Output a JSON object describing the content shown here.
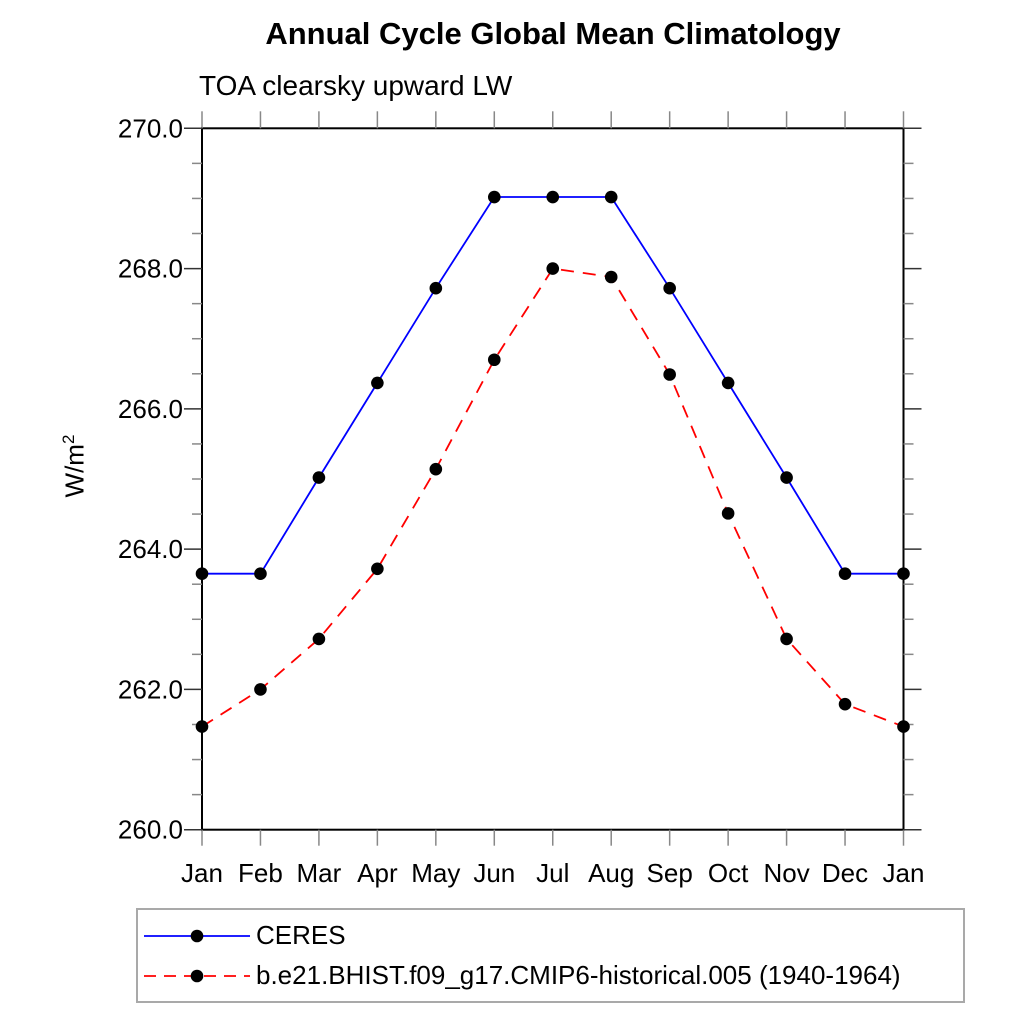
{
  "page": {
    "background_color": "#ffffff"
  },
  "chart_data": {
    "type": "line",
    "title": "Annual Cycle Global Mean Climatology",
    "subtitle": "TOA clearsky upward LW",
    "ylabel": "W/m²",
    "ylabel_base": "W/m",
    "ylabel_exponent": "2",
    "x_categories": [
      "Jan",
      "Feb",
      "Mar",
      "Apr",
      "May",
      "Jun",
      "Jul",
      "Aug",
      "Sep",
      "Oct",
      "Nov",
      "Dec",
      "Jan"
    ],
    "ylim": [
      260.0,
      270.0
    ],
    "ytick_labels": [
      "270.0",
      "268.0",
      "266.0",
      "264.0",
      "262.0",
      "260.0"
    ],
    "ytick_major_interval": 2.0,
    "ytick_minor_interval": 0.5,
    "grid": false,
    "legend_position": "boxed-below-plot",
    "axis_color": "#000000",
    "tick_color_major": "#333333",
    "tick_color_minor": "#888888",
    "series": [
      {
        "name": "CERES",
        "color": "#0000ff",
        "line_style": "solid",
        "marker": "filled-circle",
        "marker_color": "#000000",
        "values": [
          263.65,
          263.65,
          265.02,
          266.37,
          267.72,
          269.02,
          269.02,
          269.02,
          267.72,
          266.37,
          265.02,
          263.65,
          263.65
        ]
      },
      {
        "name": "b.e21.BHIST.f09_g17.CMIP6-historical.005 (1940-1964)",
        "color": "#ff0000",
        "line_style": "dashed",
        "marker": "filled-circle",
        "marker_color": "#000000",
        "values": [
          261.47,
          262.0,
          262.72,
          263.72,
          265.14,
          266.7,
          268.0,
          267.88,
          266.49,
          264.51,
          262.72,
          261.79,
          261.47
        ]
      }
    ]
  }
}
